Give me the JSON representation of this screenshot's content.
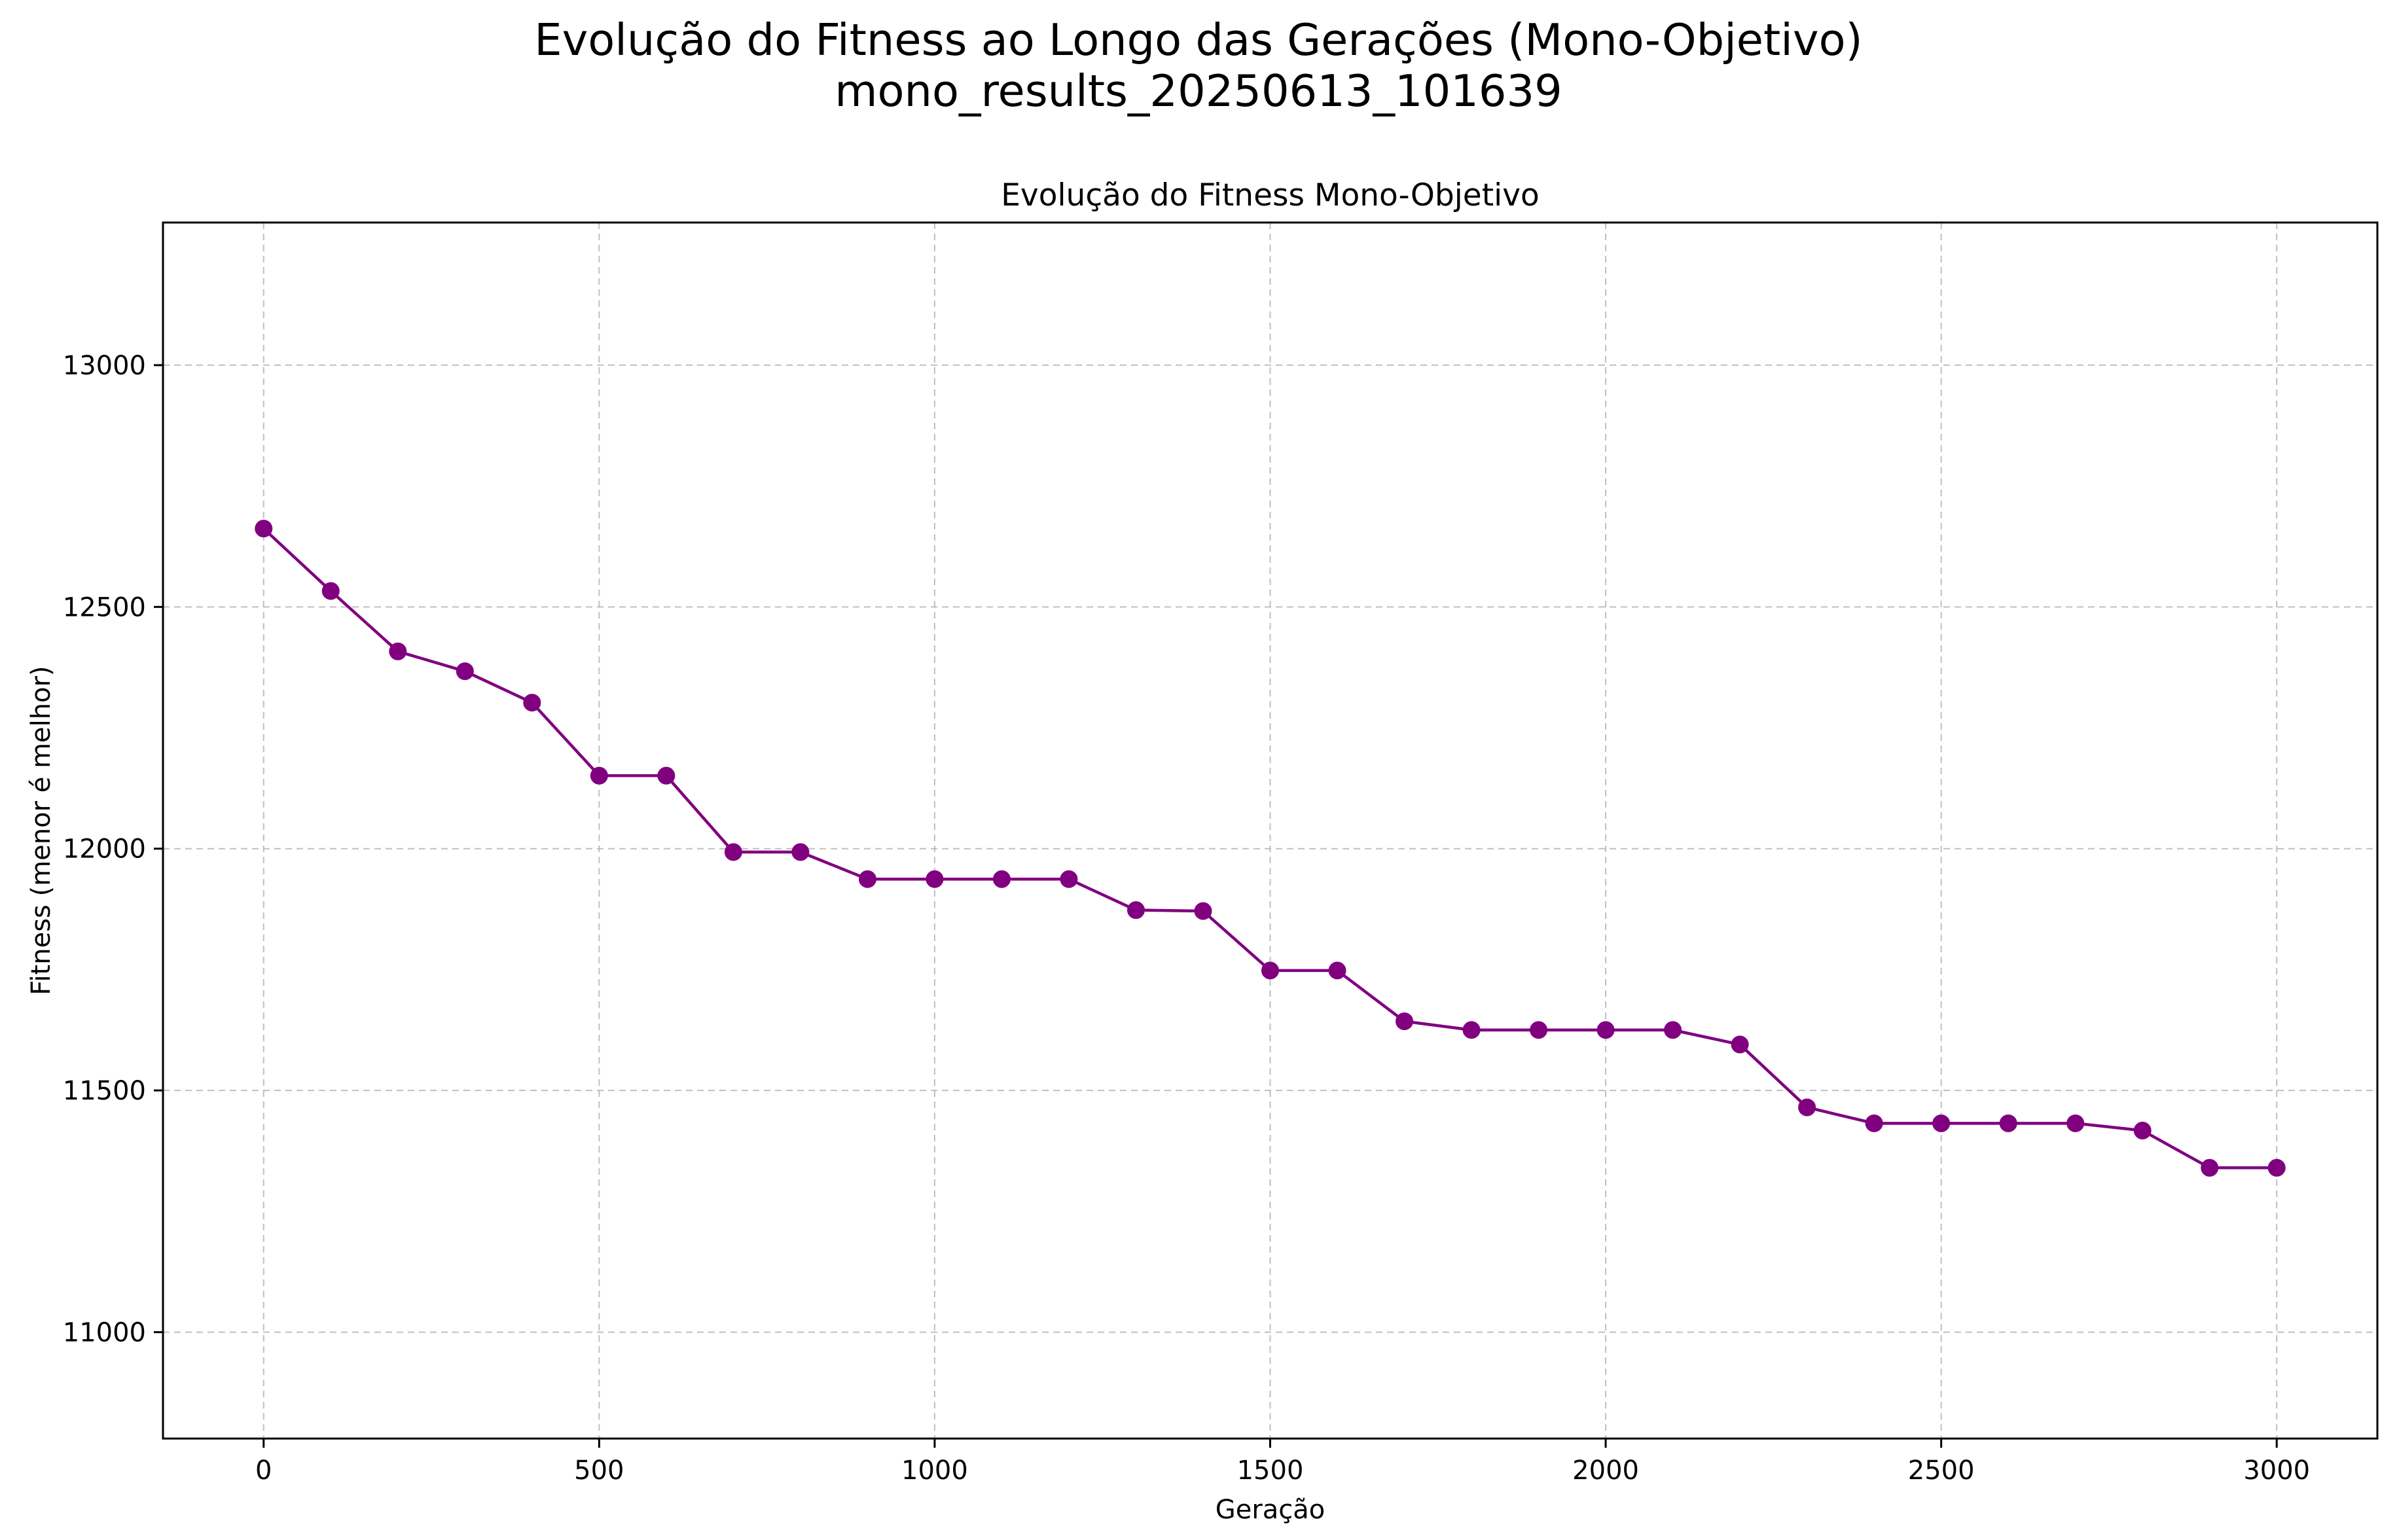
{
  "figure": {
    "suptitle_line1": "Evolução do Fitness ao Longo das Gerações (Mono-Objetivo)",
    "suptitle_line2": "mono_results_20250613_101639"
  },
  "chart_data": {
    "type": "line",
    "title": "Evolução do Fitness Mono-Objetivo",
    "xlabel": "Geração",
    "ylabel": "Fitness (menor é melhor)",
    "xlim": [
      -150,
      3150
    ],
    "ylim": [
      10780,
      13295
    ],
    "xticks": [
      0,
      500,
      1000,
      1500,
      2000,
      2500,
      3000
    ],
    "yticks": [
      11000,
      11500,
      12000,
      12500,
      13000
    ],
    "grid": true,
    "line_style": "solid with circle markers",
    "series": [
      {
        "color": "#800080",
        "x": [
          0,
          100,
          200,
          300,
          400,
          500,
          600,
          700,
          800,
          900,
          1000,
          1100,
          1200,
          1300,
          1400,
          1500,
          1600,
          1700,
          1800,
          1900,
          2000,
          2100,
          2200,
          2300,
          2400,
          2500,
          2600,
          2700,
          2800,
          2900,
          3000
        ],
        "y": [
          12662,
          12533,
          12408,
          12367,
          12302,
          12151,
          12151,
          11993,
          11993,
          11937,
          11937,
          11937,
          11937,
          11873,
          11871,
          11748,
          11748,
          11643,
          11625,
          11625,
          11625,
          11625,
          11595,
          11465,
          11432,
          11432,
          11432,
          11432,
          11417,
          11340,
          11340
        ]
      }
    ]
  }
}
